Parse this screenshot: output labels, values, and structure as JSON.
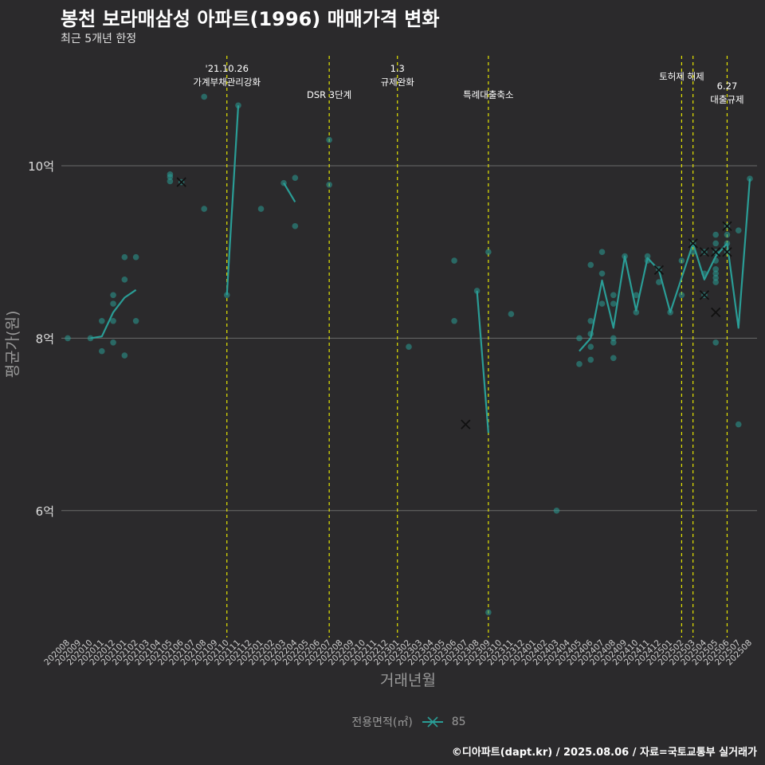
{
  "title": "봉천 보라매삼성 아파트(1996) 매매가격 변화",
  "subtitle": "최근 5개년 한정",
  "caption": "©디아파트(dapt.kr) / 2025.08.06 / 자료=국토교통부 실거래가",
  "colors": {
    "background": "#2b2a2c",
    "series": "#2a9d96",
    "event_line": "#e6e600",
    "grid": "#6a6a6a"
  },
  "chart_data": {
    "type": "scatter",
    "xlabel": "거래년월",
    "ylabel": "평균가(원)",
    "ylim": [
      4.6,
      11.3
    ],
    "yticks": [
      {
        "value": 6,
        "label": "6억"
      },
      {
        "value": 8,
        "label": "8억"
      },
      {
        "value": 10,
        "label": "10억"
      }
    ],
    "x_categories": [
      "202008",
      "202009",
      "202010",
      "202011",
      "202012",
      "202101",
      "202102",
      "202103",
      "202104",
      "202105",
      "202106",
      "202107",
      "202108",
      "202109",
      "202110",
      "202111",
      "202112",
      "202201",
      "202202",
      "202203",
      "202204",
      "202205",
      "202206",
      "202207",
      "202208",
      "202209",
      "202210",
      "202211",
      "202212",
      "202301",
      "202302",
      "202303",
      "202304",
      "202305",
      "202306",
      "202307",
      "202308",
      "202309",
      "202310",
      "202311",
      "202312",
      "202401",
      "202402",
      "202403",
      "202404",
      "202405",
      "202406",
      "202407",
      "202408",
      "202409",
      "202410",
      "202411",
      "202412",
      "202501",
      "202502",
      "202503",
      "202504",
      "202505",
      "202506",
      "202507",
      "202508"
    ],
    "legend": {
      "title": "전용면적(㎡)",
      "entries": [
        "85"
      ]
    },
    "events": [
      {
        "x": 14.0,
        "label": "'21.10.26\n가계부채관리강화",
        "level": 0
      },
      {
        "x": 23.0,
        "label": "DSR 3단계",
        "level": 2
      },
      {
        "x": 29.0,
        "label": "1.3\n규제완화",
        "level": 0
      },
      {
        "x": 37.0,
        "label": "특례대출축소",
        "level": 2
      },
      {
        "x": 54.0,
        "label": "토허제 해제",
        "level": 1
      },
      {
        "x": 55.0,
        "label": "",
        "level": 0
      },
      {
        "x": 58.0,
        "label": "6.27\n대출규제",
        "level": 3
      }
    ],
    "series": [
      {
        "name": "85",
        "points": [
          [
            0,
            8.0
          ],
          [
            2,
            8.0
          ],
          [
            3,
            7.85
          ],
          [
            3,
            8.2
          ],
          [
            4,
            7.95
          ],
          [
            4,
            8.2
          ],
          [
            4,
            8.4
          ],
          [
            4,
            8.5
          ],
          [
            5,
            7.8
          ],
          [
            5,
            8.68
          ],
          [
            5,
            8.94
          ],
          [
            6,
            8.2
          ],
          [
            6,
            8.94
          ],
          [
            9,
            9.82
          ],
          [
            9,
            9.87
          ],
          [
            9,
            9.9
          ],
          [
            10,
            9.81
          ],
          [
            12,
            9.5
          ],
          [
            12,
            10.8
          ],
          [
            14,
            8.5
          ],
          [
            15,
            10.7
          ],
          [
            17,
            9.5
          ],
          [
            19,
            9.8
          ],
          [
            20,
            9.3
          ],
          [
            20,
            9.86
          ],
          [
            23,
            9.78
          ],
          [
            23,
            10.3
          ],
          [
            30,
            7.9
          ],
          [
            34,
            8.2
          ],
          [
            34,
            8.9
          ],
          [
            36,
            8.55
          ],
          [
            37,
            9.0
          ],
          [
            37,
            4.82
          ],
          [
            39,
            8.28
          ],
          [
            43,
            6.0
          ],
          [
            45,
            7.7
          ],
          [
            45,
            8.0
          ],
          [
            46,
            7.75
          ],
          [
            46,
            7.9
          ],
          [
            46,
            8.05
          ],
          [
            46,
            8.2
          ],
          [
            46,
            8.85
          ],
          [
            47,
            8.4
          ],
          [
            47,
            8.75
          ],
          [
            47,
            9.0
          ],
          [
            48,
            7.77
          ],
          [
            48,
            7.95
          ],
          [
            48,
            8.0
          ],
          [
            48,
            8.4
          ],
          [
            48,
            8.5
          ],
          [
            49,
            8.95
          ],
          [
            50,
            8.3
          ],
          [
            50,
            8.5
          ],
          [
            51,
            8.95
          ],
          [
            51,
            8.9
          ],
          [
            52,
            8.65
          ],
          [
            52,
            8.8
          ],
          [
            53,
            8.3
          ],
          [
            54,
            8.5
          ],
          [
            54,
            8.9
          ],
          [
            55,
            9.0
          ],
          [
            55,
            9.1
          ],
          [
            56,
            8.5
          ],
          [
            56,
            8.75
          ],
          [
            56,
            9.0
          ],
          [
            57,
            7.95
          ],
          [
            57,
            8.65
          ],
          [
            57,
            8.7
          ],
          [
            57,
            8.75
          ],
          [
            57,
            8.8
          ],
          [
            57,
            8.9
          ],
          [
            57,
            9.0
          ],
          [
            57,
            9.1
          ],
          [
            57,
            9.2
          ],
          [
            58,
            9.1
          ],
          [
            58,
            9.2
          ],
          [
            58,
            9.3
          ],
          [
            58,
            9.0
          ],
          [
            59,
            7.0
          ],
          [
            59,
            9.25
          ],
          [
            60,
            9.85
          ]
        ],
        "median_marks": [
          [
            10,
            9.81
          ],
          [
            35,
            7.0
          ],
          [
            52,
            8.79
          ],
          [
            55,
            9.1
          ],
          [
            56,
            9.0
          ],
          [
            56,
            8.5
          ],
          [
            57,
            9.0
          ],
          [
            57,
            8.3
          ],
          [
            58,
            9.3
          ],
          [
            58,
            9.0
          ]
        ],
        "trend_segments": [
          [
            [
              2,
              8.0
            ],
            [
              3,
              8.02
            ],
            [
              4,
              8.3
            ],
            [
              5,
              8.47
            ],
            [
              6,
              8.56
            ]
          ],
          [
            [
              14,
              8.5
            ],
            [
              15,
              10.7
            ]
          ],
          [
            [
              19,
              9.8
            ],
            [
              20,
              9.58
            ]
          ],
          [
            [
              36,
              8.55
            ],
            [
              37,
              6.9
            ]
          ],
          [
            [
              45,
              7.85
            ],
            [
              46,
              8.0
            ],
            [
              47,
              8.67
            ],
            [
              48,
              8.12
            ],
            [
              49,
              8.95
            ],
            [
              50,
              8.32
            ],
            [
              51,
              8.93
            ],
            [
              52,
              8.79
            ],
            [
              53,
              8.3
            ],
            [
              54,
              8.7
            ],
            [
              55,
              9.1
            ],
            [
              56,
              8.68
            ],
            [
              57,
              8.95
            ],
            [
              58,
              9.1
            ],
            [
              59,
              8.12
            ],
            [
              60,
              9.85
            ]
          ]
        ]
      }
    ]
  }
}
